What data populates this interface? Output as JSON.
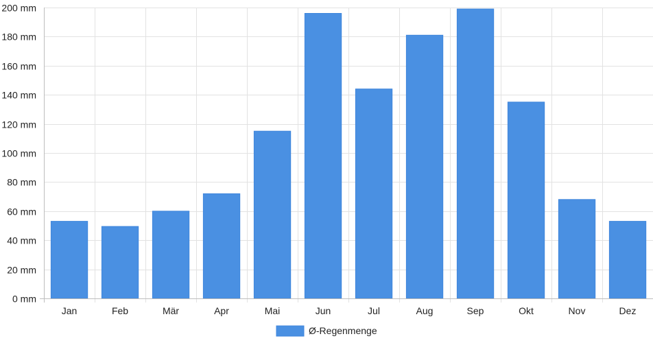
{
  "chart_data": {
    "type": "bar",
    "categories": [
      "Jan",
      "Feb",
      "Mär",
      "Apr",
      "Mai",
      "Jun",
      "Jul",
      "Aug",
      "Sep",
      "Okt",
      "Nov",
      "Dez"
    ],
    "series": [
      {
        "name": "Ø-Regenmenge",
        "values": [
          53,
          49.5,
          60,
          72,
          115,
          196,
          144,
          181,
          199,
          135,
          68,
          53
        ],
        "color": "#4a90e2"
      }
    ],
    "ylim": [
      0,
      200
    ],
    "yticks": [
      0,
      20,
      40,
      60,
      80,
      100,
      120,
      140,
      160,
      180,
      200
    ],
    "y_unit": "mm",
    "grid": true,
    "legend_position": "bottom-center"
  }
}
